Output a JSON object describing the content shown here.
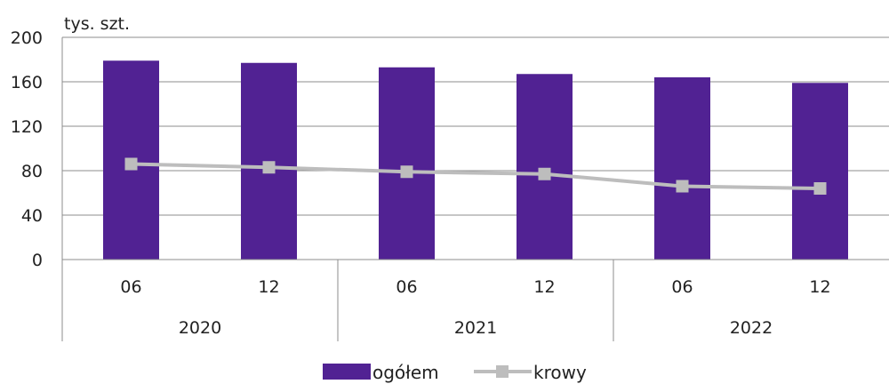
{
  "chart_data": {
    "type": "bar",
    "y_unit": "tys. szt.",
    "ylim": [
      0,
      200
    ],
    "yticks": [
      "0",
      "40",
      "80",
      "120",
      "160",
      "200"
    ],
    "categories": [
      "06",
      "12",
      "06",
      "12",
      "06",
      "12"
    ],
    "groups": [
      "2020",
      "2021",
      "2022"
    ],
    "grid": true,
    "legend_position": "bottom-center",
    "series": [
      {
        "name": "ogółem",
        "type": "bar",
        "color": "#512293",
        "values": [
          179,
          177,
          173,
          167,
          164,
          159
        ]
      },
      {
        "name": "krowy",
        "type": "line",
        "color": "#bdbdbd",
        "marker": "square",
        "values": [
          86,
          83,
          79,
          77,
          66,
          64
        ]
      }
    ]
  }
}
